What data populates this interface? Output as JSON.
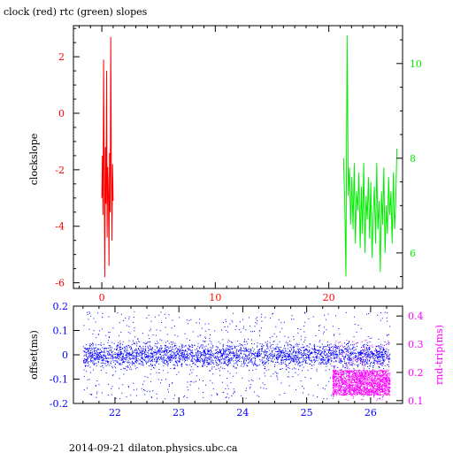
{
  "title": "clock (red) rtc (green) slopes",
  "footer": "2014-09-21 dilaton.physics.ubc.ca",
  "colors": {
    "clock": "#ff0000",
    "rtc": "#00ee00",
    "offset": "#0000ff",
    "rndtrip": "#ff00ff",
    "axes": "#000000"
  },
  "chart_data": [
    {
      "type": "line",
      "ylabel": "clockslope",
      "x_ticks": [
        0,
        10,
        20
      ],
      "xlim": [
        -2.5,
        26.5
      ],
      "y_left_ticks": [
        2,
        0,
        -2,
        -4,
        -6
      ],
      "ylim_left": [
        -6.2,
        3.1
      ],
      "y_right_ticks": [
        10,
        8,
        6
      ],
      "ylim_right": [
        5.25,
        10.8
      ],
      "series": [
        {
          "side": "left",
          "x_range": [
            0,
            1
          ],
          "values": [
            -3.0,
            -1.5,
            -3.6,
            1.9,
            -2.4,
            -5.8,
            -1.2,
            -3.2,
            1.5,
            -4.4,
            -1.9,
            -2.8,
            -5.4,
            -1.4,
            -3.5,
            2.7,
            -2.2,
            -4.5,
            -1.8,
            -3.1
          ]
        },
        {
          "side": "right",
          "x_range": [
            21.3,
            26
          ],
          "values": [
            8.0,
            7.1,
            5.5,
            10.6,
            7.2,
            7.8,
            6.6,
            7.6,
            6.5,
            7.9,
            6.2,
            7.3,
            6.9,
            7.7,
            6.1,
            7.4,
            6.4,
            7.9,
            6.0,
            7.2,
            6.7,
            7.6,
            6.3,
            7.5,
            5.9,
            6.8,
            7.4,
            6.2,
            7.9,
            6.5,
            7.1,
            5.6,
            7.3,
            6.6,
            7.8,
            6.0,
            7.0,
            6.4,
            7.6,
            6.8,
            7.3,
            6.2,
            7.7,
            6.5,
            7.0,
            8.2
          ]
        }
      ]
    },
    {
      "type": "scatter",
      "ylabel_left": "offset(ms)",
      "ylabel_right": "rnd-trip(ms)",
      "x_ticks": [
        22,
        23,
        24,
        25,
        26
      ],
      "xlim": [
        21.35,
        26.5
      ],
      "y_left_ticks": [
        0.2,
        0.1,
        0,
        -0.1,
        -0.2
      ],
      "ylim_left": [
        -0.2,
        0.2
      ],
      "y_right_ticks": [
        0.4,
        0.3,
        0.2,
        0.1
      ],
      "ylim_right": [
        0.09,
        0.435
      ],
      "series": [
        {
          "side": "left",
          "x_range": [
            21.5,
            26.3
          ],
          "center": 0.0,
          "core_band": 0.03,
          "scatter_band": 0.18
        },
        {
          "side": "right",
          "x_range": [
            25.4,
            26.3
          ],
          "center": 0.165,
          "core_band": 0.045
        }
      ]
    }
  ]
}
